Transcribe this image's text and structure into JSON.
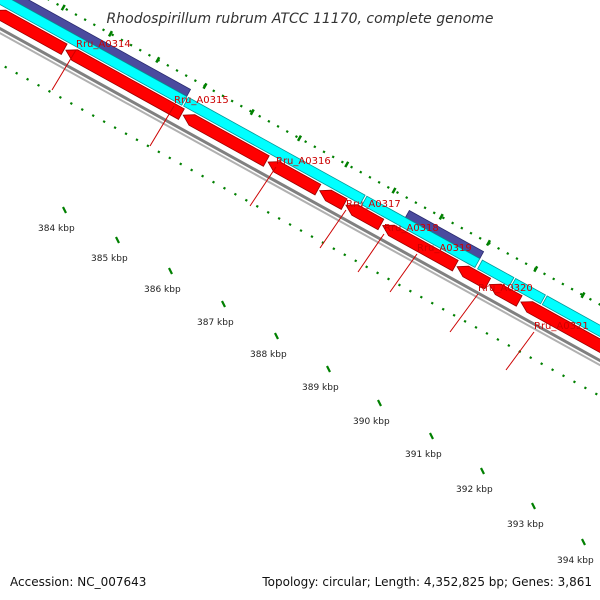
{
  "title": "Rhodospirillum rubrum ATCC 11170, complete genome",
  "footer": {
    "accession": "Accession: NC_007643",
    "summary": "Topology: circular; Length: 4,352,825 bp; Genes: 3,861"
  },
  "colors": {
    "forward_cds": "#00ffff",
    "forward_cds_dark": "#009999",
    "purple_feature": "#4b4b9e",
    "reverse_cds": "#ff0000",
    "reverse_cds_dark": "#990000",
    "backbone": "#808080",
    "gc_ticks": "#008000",
    "label": "#cc0000"
  },
  "genes": [
    {
      "name": "Rru_A0314"
    },
    {
      "name": "Rru_A0315"
    },
    {
      "name": "Rru_A0316"
    },
    {
      "name": "Rru_A0317"
    },
    {
      "name": "Rru_A0318"
    },
    {
      "name": "Rru_A0319"
    },
    {
      "name": "Rru_A0320"
    },
    {
      "name": "Rru_A0321"
    }
  ],
  "scale": {
    "start_kbp": 384,
    "end_kbp": 394,
    "labels": [
      "384 kbp",
      "385 kbp",
      "386 kbp",
      "387 kbp",
      "388 kbp",
      "389 kbp",
      "390 kbp",
      "391 kbp",
      "392 kbp",
      "393 kbp",
      "394 kbp"
    ]
  }
}
